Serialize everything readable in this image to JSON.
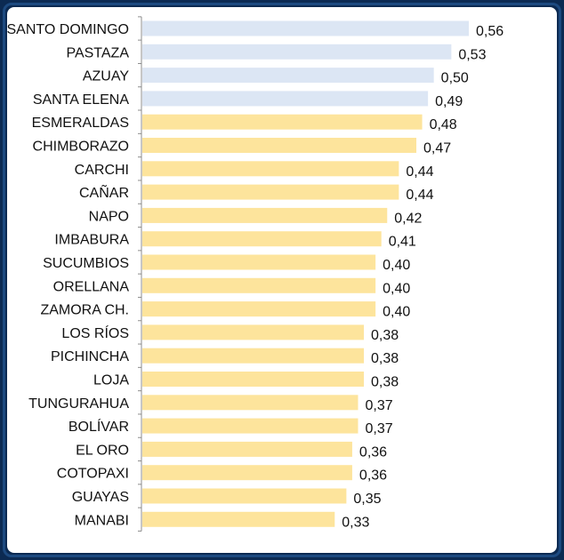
{
  "chart_data": {
    "type": "bar",
    "orientation": "horizontal",
    "categories": [
      "SANTO DOMINGO",
      "PASTAZA",
      "AZUAY",
      "SANTA ELENA",
      "ESMERALDAS",
      "CHIMBORAZO",
      "CARCHI",
      "CAÑAR",
      "NAPO",
      "IMBABURA",
      "SUCUMBIOS",
      "ORELLANA",
      "ZAMORA CH.",
      "LOS RÍOS",
      "PICHINCHA",
      "LOJA",
      "TUNGURAHUA",
      "BOLÍVAR",
      "EL ORO",
      "COTOPAXI",
      "GUAYAS",
      "MANABI"
    ],
    "values": [
      0.56,
      0.53,
      0.5,
      0.49,
      0.48,
      0.47,
      0.44,
      0.44,
      0.42,
      0.41,
      0.4,
      0.4,
      0.4,
      0.38,
      0.38,
      0.38,
      0.37,
      0.37,
      0.36,
      0.36,
      0.35,
      0.33
    ],
    "value_labels": [
      "0,56",
      "0,53",
      "0,50",
      "0,49",
      "0,48",
      "0,47",
      "0,44",
      "0,44",
      "0,42",
      "0,41",
      "0,40",
      "0,40",
      "0,40",
      "0,38",
      "0,38",
      "0,38",
      "0,37",
      "0,37",
      "0,36",
      "0,36",
      "0,35",
      "0,33"
    ],
    "bar_colors": [
      "#dce6f4",
      "#dce6f4",
      "#dce6f4",
      "#dce6f4",
      "#fde49c",
      "#fde49c",
      "#fde49c",
      "#fde49c",
      "#fde49c",
      "#fde49c",
      "#fde49c",
      "#fde49c",
      "#fde49c",
      "#fde49c",
      "#fde49c",
      "#fde49c",
      "#fde49c",
      "#fde49c",
      "#fde49c",
      "#fde49c",
      "#fde49c",
      "#fde49c"
    ],
    "xlim": [
      0,
      0.65
    ],
    "grid": false,
    "title": "",
    "xlabel": "",
    "ylabel": ""
  },
  "colors": {
    "background": "#0c2a52",
    "border": "#1d4a80",
    "panel": "#ffffff",
    "axis": "#8c8c8c",
    "highlight_bar": "#dce6f4",
    "regular_bar": "#fde49c"
  }
}
